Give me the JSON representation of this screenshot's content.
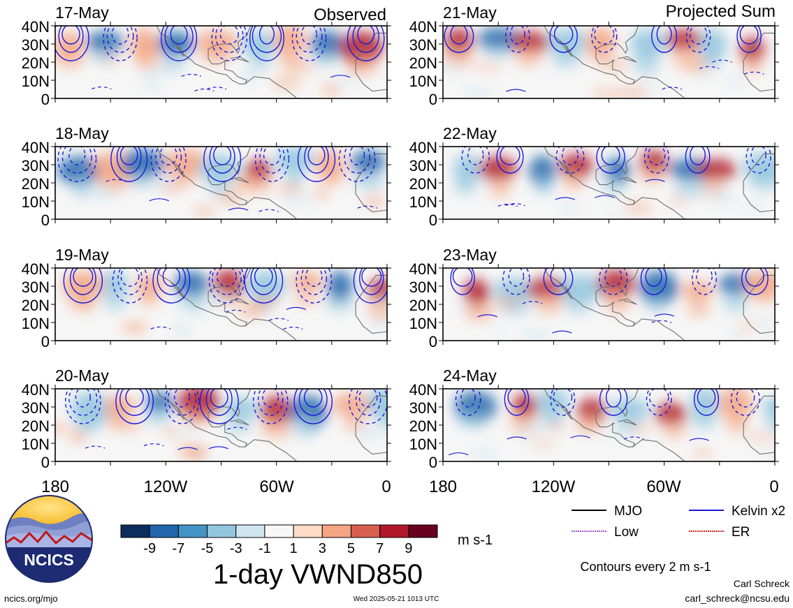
{
  "header": {
    "left_heading": "Observed",
    "right_heading": "Projected Sum"
  },
  "panels": {
    "observed": [
      {
        "date": "17-May"
      },
      {
        "date": "18-May"
      },
      {
        "date": "19-May"
      },
      {
        "date": "20-May"
      }
    ],
    "projected": [
      {
        "date": "21-May"
      },
      {
        "date": "22-May"
      },
      {
        "date": "23-May"
      },
      {
        "date": "24-May"
      }
    ]
  },
  "axes": {
    "lat_labels": [
      "40N",
      "30N",
      "20N",
      "10N",
      "0"
    ],
    "lon_labels": [
      "180",
      "120W",
      "60W",
      "0"
    ]
  },
  "colorbar": {
    "tick_labels": [
      "-9",
      "-7",
      "-5",
      "-3",
      "-1",
      "1",
      "3",
      "5",
      "7",
      "9"
    ],
    "colors": [
      "#0c2d5c",
      "#2166ac",
      "#4393c3",
      "#92c5de",
      "#d1e5f0",
      "#f7f7f7",
      "#fddbc7",
      "#f4a582",
      "#d6604d",
      "#b2182b",
      "#67001f"
    ],
    "unit": "m s-1"
  },
  "title": "1-day VWND850",
  "legend": {
    "items": [
      {
        "label": "MJO",
        "color": "#000000"
      },
      {
        "label": "Kelvin x2",
        "color": "#1a1ad8"
      },
      {
        "label": "Low",
        "color": "#a050d0"
      },
      {
        "label": "ER",
        "color": "#d42020"
      }
    ],
    "contour_note": "Contours every 2 m s-1"
  },
  "logo": {
    "text": "NCICS"
  },
  "footer": {
    "url": "ncics.org/mjo",
    "timestamp": "Wed 2025-05-21 1013 UTC",
    "author": "Carl Schreck",
    "email": "carl_schreck@ncsu.edu"
  }
}
